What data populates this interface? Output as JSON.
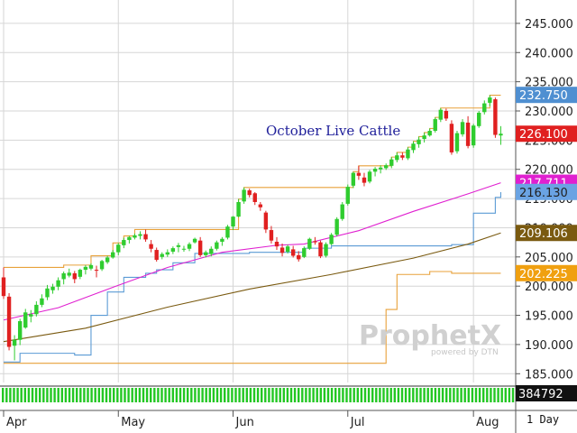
{
  "chart_data": {
    "type": "candlestick",
    "title": "October Live Cattle",
    "period_label": "1 Day",
    "watermark": {
      "brand": "ProphetX",
      "sub": "powered by DTN"
    },
    "y_ticks": [
      "245.000",
      "240.000",
      "235.000",
      "230.000",
      "225.000",
      "220.000",
      "215.000",
      "210.000",
      "205.000",
      "200.000",
      "195.000",
      "190.000",
      "185.000"
    ],
    "y_tick_values": [
      245,
      240,
      235,
      230,
      225,
      220,
      215,
      210,
      205,
      200,
      195,
      190,
      185
    ],
    "ylim": [
      183.5,
      249
    ],
    "x_labels": [
      "Apr",
      "May",
      "Jun",
      "Jul",
      "Aug"
    ],
    "x_label_index": [
      0,
      21,
      42,
      63,
      86
    ],
    "candles_ohlc": [
      [
        201.5,
        203.2,
        197.8,
        198.3
      ],
      [
        198.2,
        198.8,
        189.0,
        189.6
      ],
      [
        189.8,
        191.6,
        187.3,
        190.8
      ],
      [
        190.8,
        194.4,
        189.9,
        194.0
      ],
      [
        192.9,
        196.1,
        192.7,
        195.5
      ],
      [
        194.8,
        195.9,
        193.8,
        195.2
      ],
      [
        195.2,
        197.4,
        194.8,
        196.8
      ],
      [
        196.8,
        198.6,
        196.4,
        197.9
      ],
      [
        198.1,
        200.2,
        197.6,
        199.6
      ],
      [
        199.3,
        200.4,
        198.7,
        199.9
      ],
      [
        199.9,
        201.5,
        199.3,
        201.0
      ],
      [
        201.2,
        202.5,
        200.3,
        202.2
      ],
      [
        201.8,
        203.0,
        201.5,
        202.3
      ],
      [
        202.2,
        202.6,
        200.5,
        201.2
      ],
      [
        201.6,
        203.0,
        201.2,
        202.8
      ],
      [
        202.8,
        203.6,
        202.0,
        203.3
      ],
      [
        203.0,
        203.9,
        202.7,
        203.6
      ],
      [
        202.8,
        203.5,
        201.5,
        202.7
      ],
      [
        202.9,
        204.5,
        202.6,
        204.3
      ],
      [
        204.1,
        205.2,
        203.8,
        204.9
      ],
      [
        204.9,
        206.2,
        204.7,
        205.8
      ],
      [
        205.8,
        207.4,
        205.3,
        207.1
      ],
      [
        207.0,
        208.3,
        206.5,
        207.9
      ],
      [
        207.9,
        208.6,
        207.3,
        208.4
      ],
      [
        208.3,
        209.0,
        208.0,
        208.7
      ],
      [
        208.6,
        209.4,
        208.0,
        208.9
      ],
      [
        208.9,
        209.7,
        207.6,
        208.0
      ],
      [
        207.2,
        207.9,
        205.8,
        206.4
      ],
      [
        206.2,
        206.6,
        204.2,
        204.5
      ],
      [
        205.0,
        205.8,
        204.6,
        205.5
      ],
      [
        205.4,
        206.3,
        205.0,
        205.8
      ],
      [
        205.9,
        206.8,
        205.5,
        206.5
      ],
      [
        206.7,
        207.4,
        205.8,
        207.0
      ],
      [
        206.3,
        206.9,
        205.9,
        206.4
      ],
      [
        206.4,
        207.5,
        206.0,
        207.2
      ],
      [
        207.5,
        208.3,
        207.3,
        208.1
      ],
      [
        207.8,
        208.4,
        205.0,
        205.3
      ],
      [
        205.3,
        206.1,
        204.9,
        205.8
      ],
      [
        205.5,
        206.8,
        205.1,
        206.4
      ],
      [
        206.4,
        207.8,
        206.1,
        207.5
      ],
      [
        207.6,
        208.4,
        206.9,
        208.1
      ],
      [
        208.3,
        210.5,
        208.0,
        210.2
      ],
      [
        210.2,
        212.0,
        209.6,
        211.9
      ],
      [
        211.9,
        214.9,
        211.8,
        214.4
      ],
      [
        214.5,
        216.9,
        214.1,
        216.5
      ],
      [
        216.4,
        216.7,
        215.2,
        215.6
      ],
      [
        215.9,
        216.1,
        213.9,
        214.4
      ],
      [
        214.0,
        214.4,
        212.9,
        213.5
      ],
      [
        212.6,
        212.9,
        209.1,
        209.7
      ],
      [
        209.6,
        210.3,
        207.3,
        207.8
      ],
      [
        207.6,
        208.4,
        206.2,
        206.8
      ],
      [
        206.6,
        207.3,
        205.1,
        205.7
      ],
      [
        205.9,
        207.1,
        205.6,
        206.8
      ],
      [
        206.3,
        206.9,
        204.9,
        205.2
      ],
      [
        205.3,
        206.0,
        204.2,
        204.6
      ],
      [
        205.0,
        206.8,
        204.8,
        206.5
      ],
      [
        206.4,
        208.3,
        206.2,
        208.1
      ],
      [
        207.7,
        208.4,
        207.1,
        207.5
      ],
      [
        207.5,
        207.8,
        204.8,
        205.1
      ],
      [
        205.2,
        207.5,
        204.9,
        207.2
      ],
      [
        207.2,
        209.1,
        207.0,
        208.8
      ],
      [
        208.8,
        211.8,
        208.5,
        211.5
      ],
      [
        211.5,
        214.4,
        211.2,
        214.0
      ],
      [
        214.1,
        217.4,
        213.8,
        217.0
      ],
      [
        217.2,
        219.6,
        216.8,
        219.4
      ],
      [
        219.4,
        220.6,
        218.2,
        218.9
      ],
      [
        218.6,
        219.4,
        217.1,
        217.7
      ],
      [
        217.9,
        219.9,
        217.6,
        219.6
      ],
      [
        219.6,
        220.4,
        218.8,
        220.1
      ],
      [
        220.0,
        220.7,
        219.3,
        220.3
      ],
      [
        220.2,
        221.0,
        219.9,
        220.7
      ],
      [
        220.6,
        222.1,
        220.2,
        221.7
      ],
      [
        221.6,
        222.9,
        221.2,
        222.4
      ],
      [
        222.4,
        222.9,
        221.6,
        222.0
      ],
      [
        221.9,
        223.8,
        221.6,
        223.4
      ],
      [
        223.3,
        224.8,
        222.8,
        224.4
      ],
      [
        224.3,
        225.6,
        223.7,
        225.1
      ],
      [
        225.2,
        226.3,
        224.6,
        225.8
      ],
      [
        225.8,
        227.0,
        225.6,
        226.6
      ],
      [
        226.6,
        228.9,
        226.3,
        228.6
      ],
      [
        228.5,
        230.5,
        228.1,
        230.2
      ],
      [
        230.0,
        230.4,
        228.3,
        228.7
      ],
      [
        227.8,
        228.4,
        222.5,
        222.9
      ],
      [
        223.1,
        226.6,
        222.7,
        226.2
      ],
      [
        226.0,
        228.6,
        225.6,
        228.1
      ],
      [
        228.0,
        229.1,
        223.6,
        224.0
      ],
      [
        224.1,
        227.8,
        223.7,
        227.5
      ],
      [
        227.4,
        230.0,
        227.1,
        229.7
      ],
      [
        229.8,
        231.8,
        229.4,
        231.3
      ],
      [
        231.4,
        232.7,
        230.8,
        232.3
      ],
      [
        232.0,
        232.3,
        225.4,
        225.9
      ],
      [
        225.8,
        227.4,
        224.2,
        226.1
      ]
    ],
    "series": [
      {
        "name": "upper_channel",
        "color": "#e8a13a",
        "steps": [
          [
            0,
            203.2
          ],
          [
            11,
            203.6
          ],
          [
            16,
            205.2
          ],
          [
            20,
            207.4
          ],
          [
            22,
            208.6
          ],
          [
            24,
            209.7
          ],
          [
            43,
            214.9
          ],
          [
            44,
            216.9
          ],
          [
            64,
            219.6
          ],
          [
            65,
            220.6
          ],
          [
            71,
            222.1
          ],
          [
            72,
            222.9
          ],
          [
            74,
            223.8
          ],
          [
            75,
            224.8
          ],
          [
            76,
            225.6
          ],
          [
            77,
            226.3
          ],
          [
            78,
            227.0
          ],
          [
            79,
            228.9
          ],
          [
            80,
            230.5
          ],
          [
            89,
            232.7
          ]
        ]
      },
      {
        "name": "lower_channel",
        "color": "#e8a13a",
        "steps": [
          [
            0,
            186.8
          ],
          [
            65,
            186.8
          ],
          [
            70,
            196.0
          ],
          [
            72,
            202.0
          ],
          [
            78,
            202.5
          ],
          [
            82,
            202.2
          ]
        ]
      },
      {
        "name": "stop_line",
        "color": "#5b9bd5",
        "steps": [
          [
            0,
            187.0
          ],
          [
            3,
            188.5
          ],
          [
            13,
            188.2
          ],
          [
            16,
            195.0
          ],
          [
            19,
            199.0
          ],
          [
            22,
            201.5
          ],
          [
            26,
            202.2
          ],
          [
            28,
            202.8
          ],
          [
            31,
            204.0
          ],
          [
            35,
            205.6
          ],
          [
            45,
            205.8
          ],
          [
            55,
            206.5
          ],
          [
            60,
            206.9
          ],
          [
            82,
            207.1
          ],
          [
            86,
            212.5
          ],
          [
            90,
            215.2
          ],
          [
            91,
            216.1
          ]
        ]
      },
      {
        "name": "ma_fast",
        "color": "#e020d0",
        "points": [
          [
            0,
            194.2
          ],
          [
            10,
            196.3
          ],
          [
            20,
            199.8
          ],
          [
            30,
            203.2
          ],
          [
            40,
            205.8
          ],
          [
            50,
            207.0
          ],
          [
            55,
            207.2
          ],
          [
            65,
            209.5
          ],
          [
            75,
            212.8
          ],
          [
            85,
            215.8
          ],
          [
            91,
            217.7
          ]
        ]
      },
      {
        "name": "ma_slow",
        "color": "#7a5a10",
        "points": [
          [
            0,
            190.5
          ],
          [
            15,
            192.8
          ],
          [
            30,
            196.4
          ],
          [
            45,
            199.5
          ],
          [
            60,
            202.0
          ],
          [
            75,
            204.8
          ],
          [
            85,
            207.2
          ],
          [
            91,
            209.1
          ]
        ]
      }
    ],
    "badges": [
      {
        "text": "232.750",
        "value": 232.75,
        "bg": "#4f8fd1",
        "fg": "#ffffff"
      },
      {
        "text": "226.100",
        "value": 226.1,
        "bg": "#e02020",
        "fg": "#ffffff"
      },
      {
        "text": "217.711",
        "value": 217.711,
        "bg": "#e020d0",
        "fg": "#ffffff"
      },
      {
        "text": "216.130",
        "value": 216.13,
        "bg": "#6aa3e3",
        "fg": "#222222"
      },
      {
        "text": "209.106",
        "value": 209.106,
        "bg": "#7a5a10",
        "fg": "#ffffff"
      },
      {
        "text": "202.225",
        "value": 202.225,
        "bg": "#f0a010",
        "fg": "#ffffff"
      }
    ],
    "volume_label": "384792",
    "colors": {
      "up": "#2fcc2f",
      "down": "#e02020",
      "grid": "#d6d6d6",
      "volume": "#22c722"
    }
  }
}
